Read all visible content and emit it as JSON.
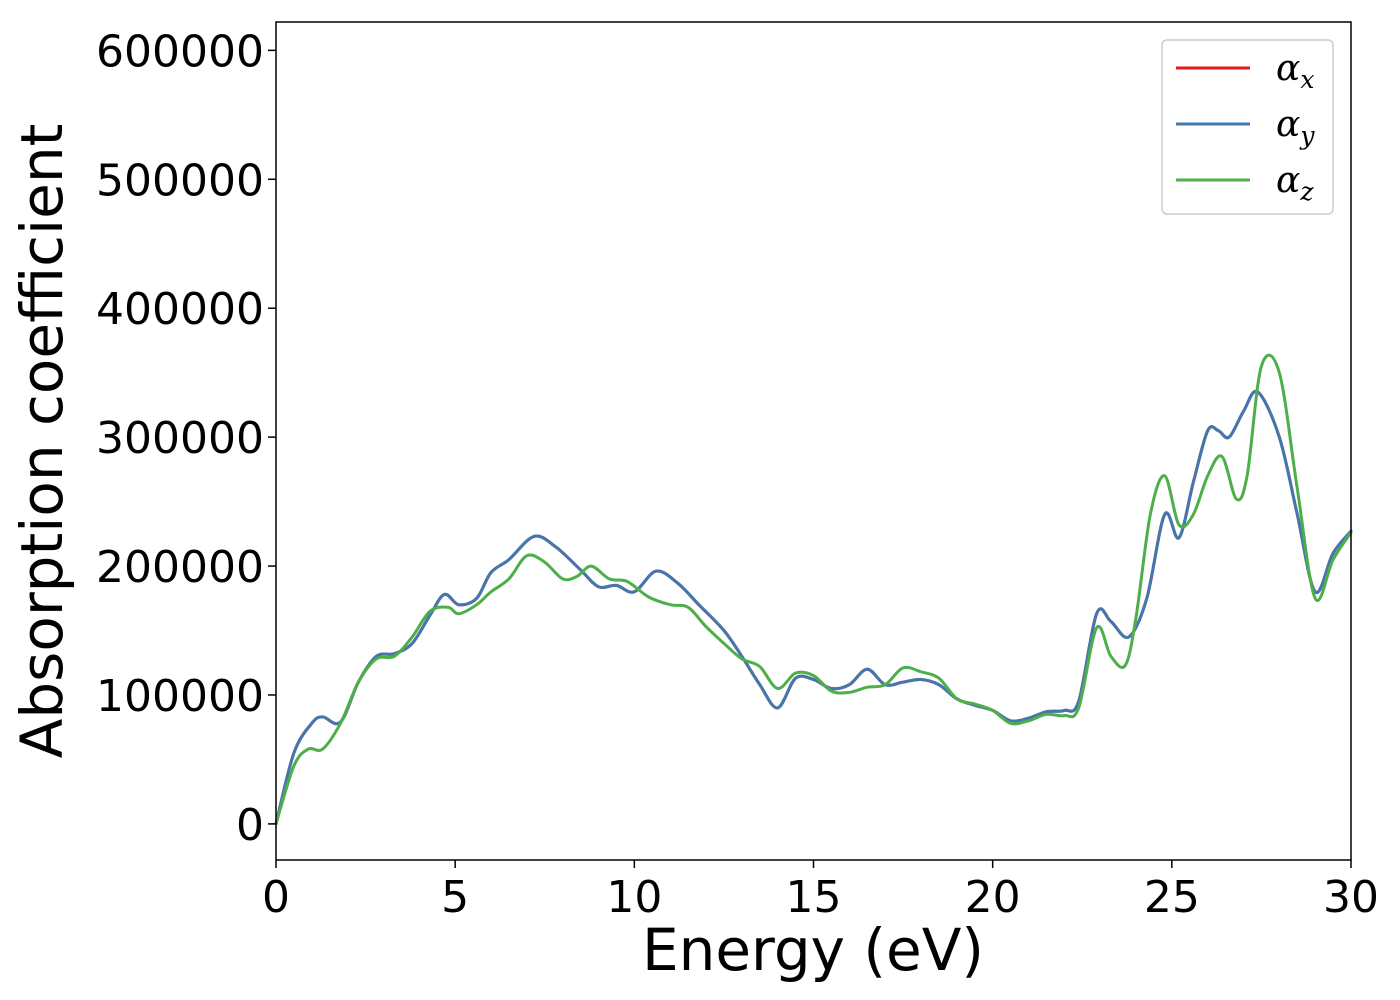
{
  "chart_data": {
    "type": "line",
    "xlabel": "Energy (eV)",
    "ylabel": "Absorption coefficient",
    "xlim": [
      0,
      30
    ],
    "ylim": [
      -28000,
      622000
    ],
    "xticks": [
      0,
      5,
      10,
      15,
      20,
      25,
      30
    ],
    "yticks": [
      0,
      100000,
      200000,
      300000,
      400000,
      500000,
      600000
    ],
    "grid": false,
    "legend_position": "top-right",
    "series": [
      {
        "name": "αx",
        "name_base": "α",
        "name_sub": "x",
        "color": "#e41a1c",
        "x": [
          0,
          0.5,
          1.0,
          1.3,
          1.8,
          2.3,
          2.8,
          3.3,
          3.8,
          4.3,
          4.7,
          5.1,
          5.6,
          6.0,
          6.5,
          7.2,
          7.8,
          8.5,
          9.0,
          9.5,
          10.0,
          10.6,
          11.2,
          11.8,
          12.5,
          13.0,
          13.5,
          14.0,
          14.5,
          15.0,
          15.5,
          16.0,
          16.5,
          17.0,
          17.5,
          18.0,
          18.5,
          19.0,
          19.5,
          20.0,
          20.5,
          21.0,
          21.5,
          22.0,
          22.4,
          22.9,
          23.3,
          23.8,
          24.3,
          24.8,
          25.2,
          25.6,
          26.0,
          26.3,
          26.6,
          27.0,
          27.4,
          28.0,
          28.5,
          29.0,
          29.5,
          30.0
        ],
        "y": [
          0,
          55000,
          78000,
          83000,
          79000,
          110000,
          130000,
          132000,
          140000,
          162000,
          178000,
          170000,
          175000,
          195000,
          205000,
          223000,
          215000,
          197000,
          184000,
          185000,
          180000,
          196000,
          187000,
          170000,
          150000,
          130000,
          108000,
          90000,
          113000,
          112000,
          105000,
          108000,
          120000,
          108000,
          110000,
          112000,
          108000,
          97000,
          92000,
          88000,
          80000,
          82000,
          87000,
          88000,
          95000,
          163000,
          157000,
          145000,
          175000,
          240000,
          222000,
          265000,
          305000,
          305000,
          300000,
          320000,
          335000,
          300000,
          240000,
          180000,
          210000,
          227000
        ]
      },
      {
        "name": "αy",
        "name_base": "α",
        "name_sub": "y",
        "color": "#4178b0",
        "x": [
          0,
          0.5,
          1.0,
          1.3,
          1.8,
          2.3,
          2.8,
          3.3,
          3.8,
          4.3,
          4.7,
          5.1,
          5.6,
          6.0,
          6.5,
          7.2,
          7.8,
          8.5,
          9.0,
          9.5,
          10.0,
          10.6,
          11.2,
          11.8,
          12.5,
          13.0,
          13.5,
          14.0,
          14.5,
          15.0,
          15.5,
          16.0,
          16.5,
          17.0,
          17.5,
          18.0,
          18.5,
          19.0,
          19.5,
          20.0,
          20.5,
          21.0,
          21.5,
          22.0,
          22.4,
          22.9,
          23.3,
          23.8,
          24.3,
          24.8,
          25.2,
          25.6,
          26.0,
          26.3,
          26.6,
          27.0,
          27.4,
          28.0,
          28.5,
          29.0,
          29.5,
          30.0
        ],
        "y": [
          0,
          55000,
          78000,
          83000,
          79000,
          110000,
          130000,
          132000,
          140000,
          162000,
          178000,
          170000,
          175000,
          195000,
          205000,
          223000,
          215000,
          197000,
          184000,
          185000,
          180000,
          196000,
          187000,
          170000,
          150000,
          130000,
          108000,
          90000,
          113000,
          112000,
          105000,
          108000,
          120000,
          108000,
          110000,
          112000,
          108000,
          97000,
          92000,
          88000,
          80000,
          82000,
          87000,
          88000,
          95000,
          163000,
          157000,
          145000,
          175000,
          240000,
          222000,
          265000,
          305000,
          305000,
          300000,
          320000,
          335000,
          300000,
          240000,
          180000,
          210000,
          227000
        ]
      },
      {
        "name": "αz",
        "name_base": "α",
        "name_sub": "z",
        "color": "#4daf4a",
        "x": [
          0,
          0.5,
          0.9,
          1.3,
          1.8,
          2.3,
          2.8,
          3.3,
          3.8,
          4.3,
          4.8,
          5.1,
          5.6,
          6.0,
          6.5,
          7.0,
          7.5,
          8.0,
          8.4,
          8.8,
          9.3,
          9.8,
          10.4,
          11.0,
          11.5,
          12.0,
          12.5,
          13.0,
          13.5,
          14.0,
          14.5,
          15.0,
          15.5,
          16.0,
          16.5,
          17.0,
          17.5,
          18.0,
          18.5,
          19.0,
          19.5,
          20.0,
          20.5,
          21.0,
          21.5,
          22.0,
          22.4,
          22.9,
          23.3,
          23.7,
          24.0,
          24.4,
          24.8,
          25.2,
          25.6,
          26.0,
          26.4,
          26.8,
          27.1,
          27.5,
          28.0,
          28.5,
          29.0,
          29.5,
          30.0
        ],
        "y": [
          0,
          45000,
          58000,
          58000,
          78000,
          110000,
          128000,
          130000,
          145000,
          165000,
          168000,
          163000,
          170000,
          180000,
          190000,
          208000,
          203000,
          190000,
          192000,
          200000,
          190000,
          188000,
          176000,
          170000,
          168000,
          153000,
          140000,
          128000,
          122000,
          105000,
          117000,
          115000,
          103000,
          102000,
          106000,
          108000,
          121000,
          118000,
          113000,
          97000,
          93000,
          88000,
          78000,
          80000,
          85000,
          84000,
          90000,
          152000,
          130000,
          123000,
          160000,
          240000,
          270000,
          232000,
          240000,
          270000,
          285000,
          252000,
          270000,
          355000,
          350000,
          260000,
          175000,
          205000,
          226000
        ]
      }
    ]
  }
}
